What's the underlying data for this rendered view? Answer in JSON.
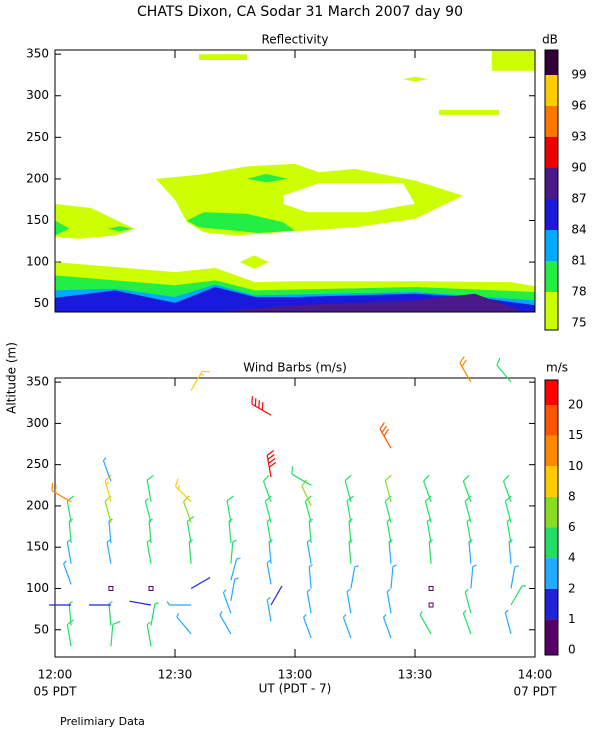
{
  "title": "CHATS Dixon, CA   Sodar   31 March 2007   day  90",
  "footnote": "Prelimiary Data",
  "chart_data": [
    {
      "type": "contour",
      "title": "Reflectivity",
      "ylabel": "Altitude (m)",
      "xlim": [
        12,
        14
      ],
      "xticks": [
        12,
        12.5,
        13,
        13.5,
        14
      ],
      "ylim": [
        40,
        355
      ],
      "yticks": [
        50,
        100,
        150,
        200,
        250,
        300,
        350
      ],
      "colorbar": {
        "label": "dB",
        "levels": [
          75,
          78,
          81,
          84,
          87,
          90,
          93,
          96,
          99
        ],
        "colors": [
          "#ccff00",
          "#22ee44",
          "#00aaff",
          "#1a1add",
          "#4b1a8a",
          "#ee0000",
          "#ff7700",
          "#ffcc00",
          "#330033"
        ]
      },
      "regions": [
        {
          "level": 75,
          "x": [
            12,
            12.5,
            12.667,
            12.833,
            13,
            13.5,
            13.9,
            14,
            14,
            12
          ],
          "y": [
            100,
            88,
            93,
            76,
            77,
            77,
            76,
            71,
            40,
            40
          ]
        },
        {
          "level": 78,
          "x": [
            12,
            12.5,
            12.667,
            12.833,
            13.5,
            14,
            14,
            12
          ],
          "y": [
            84,
            72,
            78,
            66,
            70,
            64,
            40,
            40
          ]
        },
        {
          "level": 81,
          "x": [
            12,
            12.25,
            12.5,
            12.667,
            12.833,
            13.5,
            14,
            14,
            12
          ],
          "y": [
            66,
            68,
            58,
            73,
            60,
            64,
            54,
            40,
            40
          ]
        },
        {
          "level": 84,
          "x": [
            12,
            12.25,
            12.5,
            12.667,
            12.833,
            13,
            13.5,
            13.75,
            14,
            14,
            12
          ],
          "y": [
            57,
            66,
            51,
            70,
            58,
            58,
            62,
            58,
            48,
            40,
            40
          ]
        },
        {
          "level": 87,
          "x": [
            12.667,
            13,
            13.5,
            13.75,
            13.95,
            12.667
          ],
          "y": [
            40,
            48,
            54,
            62,
            40,
            40
          ]
        },
        {
          "level": 75,
          "x": [
            12,
            12.15,
            12.33,
            12.25,
            12.1,
            12
          ],
          "y": [
            170,
            165,
            140,
            132,
            128,
            130
          ]
        },
        {
          "level": 75,
          "x": [
            12.42,
            12.6,
            12.8,
            13,
            13.1,
            13.25,
            13.5,
            13.7,
            13.5,
            13.25,
            13,
            12.75,
            12.62,
            12.55,
            12.5,
            12.42
          ],
          "y": [
            200,
            205,
            215,
            218,
            208,
            212,
            198,
            180,
            152,
            142,
            137,
            132,
            136,
            148,
            175,
            200
          ]
        },
        {
          "level": null,
          "x": [
            12.95,
            13.1,
            13.45,
            13.5,
            13.3,
            13.05,
            12.95
          ],
          "y": [
            180,
            195,
            195,
            170,
            160,
            160,
            170
          ]
        },
        {
          "level": 78,
          "x": [
            12.55,
            12.62,
            12.8,
            12.95,
            13,
            12.85,
            12.6
          ],
          "y": [
            150,
            160,
            158,
            148,
            138,
            135,
            142
          ]
        },
        {
          "level": 78,
          "x": [
            12.8,
            12.88,
            12.97,
            12.88
          ],
          "y": [
            200,
            206,
            200,
            196
          ]
        },
        {
          "level": 78,
          "x": [
            12,
            12.06,
            12
          ],
          "y": [
            150,
            140,
            132
          ]
        },
        {
          "level": 78,
          "x": [
            12.22,
            12.27,
            12.32,
            12.27
          ],
          "y": [
            140,
            143,
            140,
            137
          ]
        },
        {
          "level": 75,
          "x": [
            12.77,
            12.83,
            12.89,
            12.83
          ],
          "y": [
            100,
            108,
            100,
            92
          ]
        },
        {
          "level": 75,
          "x": [
            12.6,
            12.8,
            12.8,
            12.6
          ],
          "y": [
            350,
            350,
            343,
            343
          ]
        },
        {
          "level": 75,
          "x": [
            13.82,
            14,
            14,
            13.82
          ],
          "y": [
            354,
            354,
            330,
            330
          ]
        },
        {
          "level": 75,
          "x": [
            13.6,
            13.85,
            13.85,
            13.6
          ],
          "y": [
            283,
            283,
            277,
            277
          ]
        },
        {
          "level": 75,
          "x": [
            13.45,
            13.5,
            13.55,
            13.5
          ],
          "y": [
            320,
            323,
            320,
            317
          ]
        }
      ]
    },
    {
      "type": "barbs",
      "title": "Wind Barbs (m/s)",
      "xlabel": "UT  (PDT - 7)",
      "xlabel_left": "05 PDT",
      "xlabel_right": "07 PDT",
      "xlim": [
        12,
        14
      ],
      "xticks": [
        {
          "value": 12,
          "label": "12:00"
        },
        {
          "value": 12.5,
          "label": "12:30"
        },
        {
          "value": 13,
          "label": "13:00"
        },
        {
          "value": 13.5,
          "label": "13:30"
        },
        {
          "value": 14,
          "label": "14:00"
        }
      ],
      "ylim": [
        17,
        355
      ],
      "yticks": [
        50,
        100,
        150,
        200,
        250,
        300,
        350
      ],
      "colorbar": {
        "label": "m/s",
        "levels": [
          0,
          1,
          2,
          4,
          6,
          8,
          10,
          15,
          20
        ],
        "colors": [
          "#550066",
          "#2222dd",
          "#22aaff",
          "#22dd66",
          "#88dd22",
          "#ffcc00",
          "#ff8800",
          "#ff5500",
          "#ff0000"
        ]
      },
      "x": [
        12.067,
        12.067,
        12.067,
        12.067,
        12.067,
        12.067,
        12.067,
        12.067,
        12.233,
        12.233,
        12.233,
        12.233,
        12.233,
        12.233,
        12.233,
        12.233,
        12.233,
        12.4,
        12.4,
        12.4,
        12.4,
        12.4,
        12.4,
        12.4,
        12.4,
        12.567,
        12.567,
        12.567,
        12.567,
        12.567,
        12.567,
        12.567,
        12.567,
        12.733,
        12.733,
        12.733,
        12.733,
        12.733,
        12.733,
        12.733,
        12.9,
        12.9,
        12.9,
        12.9,
        12.9,
        12.9,
        12.9,
        12.9,
        12.9,
        13.067,
        13.067,
        13.067,
        13.067,
        13.067,
        13.067,
        13.067,
        13.067,
        13.233,
        13.233,
        13.233,
        13.233,
        13.233,
        13.233,
        13.233,
        13.4,
        13.4,
        13.4,
        13.4,
        13.4,
        13.4,
        13.4,
        13.4,
        13.567,
        13.567,
        13.567,
        13.567,
        13.567,
        13.567,
        13.567,
        13.733,
        13.733,
        13.733,
        13.733,
        13.733,
        13.733,
        13.733,
        13.733,
        13.9,
        13.9,
        13.9,
        13.9,
        13.9,
        13.9,
        13.9,
        13.9
      ],
      "y": [
        30,
        55,
        80,
        105,
        130,
        155,
        180,
        205,
        30,
        55,
        80,
        100,
        130,
        155,
        180,
        205,
        230,
        30,
        55,
        80,
        100,
        130,
        155,
        180,
        205,
        45,
        80,
        100,
        130,
        155,
        180,
        205,
        340,
        45,
        70,
        85,
        110,
        130,
        155,
        180,
        60,
        80,
        105,
        130,
        155,
        180,
        205,
        235,
        310,
        40,
        70,
        100,
        130,
        155,
        180,
        200,
        225,
        40,
        70,
        100,
        130,
        155,
        180,
        205,
        40,
        70,
        100,
        130,
        155,
        180,
        205,
        270,
        45,
        80,
        100,
        130,
        155,
        180,
        205,
        45,
        70,
        100,
        130,
        155,
        180,
        205,
        350,
        45,
        80,
        100,
        130,
        155,
        180,
        205,
        350
      ],
      "speed": [
        5,
        4.5,
        1.5,
        3,
        3.5,
        4.5,
        5,
        12,
        5,
        4,
        1.2,
        0.3,
        3,
        3.5,
        7,
        8.5,
        3,
        4.5,
        4,
        1.5,
        0.4,
        4,
        4,
        4.5,
        5,
        3,
        2.5,
        1.5,
        4.5,
        5,
        7,
        8.5,
        9,
        3,
        3,
        2.5,
        3,
        4,
        4.5,
        5,
        3.5,
        1.2,
        3,
        3.5,
        4,
        5,
        5.5,
        20,
        21,
        3.5,
        3.5,
        3,
        3.5,
        4,
        5,
        6,
        5.5,
        3.5,
        3.5,
        3.5,
        4,
        4.5,
        5,
        5.5,
        3.5,
        3,
        3,
        3.5,
        4,
        5,
        6,
        17,
        4.5,
        0.5,
        0.8,
        4,
        4,
        5,
        5.5,
        4.5,
        4,
        3,
        3,
        4,
        5,
        5.5,
        11,
        3.5,
        4,
        3,
        3.5,
        4,
        5,
        5,
        5.5
      ],
      "direction": [
        350,
        355,
        270,
        340,
        350,
        355,
        350,
        300,
        5,
        355,
        270,
        0,
        350,
        355,
        345,
        345,
        340,
        350,
        10,
        280,
        0,
        350,
        355,
        345,
        350,
        320,
        270,
        60,
        355,
        350,
        340,
        315,
        30,
        330,
        340,
        10,
        15,
        5,
        355,
        350,
        350,
        30,
        350,
        355,
        350,
        345,
        340,
        350,
        300,
        340,
        350,
        355,
        350,
        355,
        345,
        335,
        300,
        340,
        350,
        10,
        355,
        355,
        350,
        345,
        340,
        350,
        5,
        355,
        350,
        345,
        345,
        330,
        330,
        0,
        270,
        355,
        350,
        345,
        340,
        340,
        345,
        5,
        355,
        350,
        345,
        340,
        330,
        345,
        30,
        10,
        355,
        350,
        345,
        340,
        320
      ]
    }
  ]
}
